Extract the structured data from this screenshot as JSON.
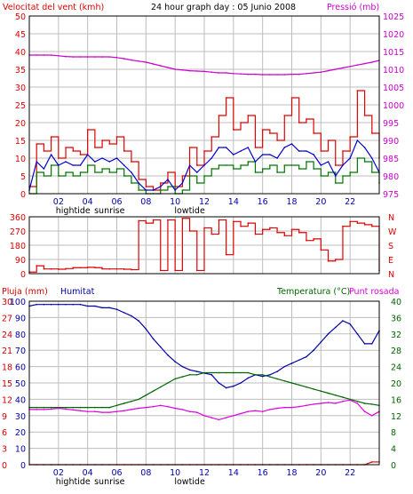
{
  "title": "24 hour graph day : 05 Junio 2008",
  "colors": {
    "wind": "#e00000",
    "wind_avg": "#0000cc",
    "wind_min": "#007700",
    "pressure": "#cc00cc",
    "humidity": "#0000aa",
    "temperature": "#006600",
    "dewpoint": "#dd00dd",
    "rain": "#d00000",
    "grid": "#bdbdbd",
    "frame": "#000000"
  },
  "x_ticks": [
    "02",
    "04",
    "06",
    "08",
    "10",
    "12",
    "14",
    "16",
    "18",
    "20",
    "22"
  ],
  "x_markers": {
    "hightide": {
      "label": "hightide",
      "at": "03"
    },
    "sunrise": {
      "label": "sunrise",
      "at": "05.5"
    },
    "lowtide": {
      "label": "lowtide",
      "at": "11"
    }
  },
  "chart_data": [
    {
      "type": "line",
      "panel": "wind_pressure",
      "left_label": "Velocitat del vent (kmh)",
      "right_label": "Pressió (mb)",
      "left_ticks": [
        "0",
        "5",
        "10",
        "15",
        "20",
        "25",
        "30",
        "35",
        "40",
        "45",
        "50"
      ],
      "right_ticks": [
        "975",
        "980",
        "985",
        "990",
        "995",
        "1000",
        "1005",
        "1010",
        "1015",
        "1020",
        "1025"
      ],
      "ylim_left": [
        0,
        50
      ],
      "ylim_right": [
        975,
        1025
      ],
      "x_hours": [
        0,
        0.5,
        1,
        1.5,
        2,
        2.5,
        3,
        3.5,
        4,
        4.5,
        5,
        5.5,
        6,
        6.5,
        7,
        7.5,
        8,
        8.5,
        9,
        9.5,
        10,
        10.5,
        11,
        11.5,
        12,
        12.5,
        13,
        13.5,
        14,
        14.5,
        15,
        15.5,
        16,
        16.5,
        17,
        17.5,
        18,
        18.5,
        19,
        19.5,
        20,
        20.5,
        21,
        21.5,
        22,
        22.5,
        23,
        23.5,
        24
      ],
      "series": [
        {
          "name": "gust",
          "values": [
            2,
            14,
            12,
            16,
            10,
            13,
            12,
            11,
            18,
            13,
            15,
            14,
            16,
            12,
            9,
            4,
            2,
            1,
            3,
            6,
            2,
            5,
            13,
            8,
            12,
            16,
            22,
            27,
            18,
            20,
            22,
            13,
            18,
            17,
            15,
            22,
            27,
            20,
            21,
            17,
            12,
            15,
            8,
            12,
            16,
            29,
            22,
            17,
            10
          ]
        },
        {
          "name": "average",
          "values": [
            1,
            9,
            7,
            11,
            8,
            9,
            8,
            8,
            11,
            9,
            10,
            9,
            10,
            8,
            6,
            3,
            1,
            1,
            2,
            4,
            1,
            3,
            8,
            6,
            8,
            10,
            13,
            13,
            11,
            12,
            13,
            9,
            11,
            11,
            10,
            13,
            14,
            12,
            12,
            11,
            8,
            9,
            5,
            8,
            10,
            15,
            13,
            10,
            6
          ]
        },
        {
          "name": "minimum",
          "values": [
            0,
            6,
            5,
            8,
            5,
            6,
            5,
            6,
            8,
            6,
            7,
            6,
            7,
            5,
            3,
            1,
            0,
            0,
            1,
            2,
            0,
            1,
            5,
            3,
            5,
            7,
            8,
            8,
            7,
            8,
            9,
            6,
            7,
            8,
            6,
            8,
            8,
            7,
            9,
            7,
            5,
            6,
            3,
            5,
            6,
            10,
            9,
            6,
            3
          ]
        },
        {
          "name": "pressure",
          "axis": "right",
          "values": [
            1014,
            1014,
            1014,
            1014,
            1013.8,
            1013.6,
            1013.5,
            1013.5,
            1013.5,
            1013.5,
            1013.5,
            1013.5,
            1013.3,
            1013,
            1012.6,
            1012.3,
            1012,
            1011.5,
            1011,
            1010.5,
            1010,
            1009.8,
            1009.6,
            1009.5,
            1009.4,
            1009.2,
            1009,
            1009,
            1008.8,
            1008.7,
            1008.6,
            1008.6,
            1008.5,
            1008.5,
            1008.5,
            1008.5,
            1008.6,
            1008.6,
            1008.8,
            1009,
            1009.2,
            1009.6,
            1010,
            1010.4,
            1010.8,
            1011.2,
            1011.6,
            1012,
            1012.5
          ]
        }
      ]
    },
    {
      "type": "line",
      "panel": "wind_direction",
      "left_ticks": [
        "0",
        "90",
        "180",
        "270",
        "360"
      ],
      "right_ticks": [
        "N",
        "E",
        "S",
        "W",
        "N"
      ],
      "ylim": [
        0,
        360
      ],
      "x_hours": [
        0,
        0.5,
        1,
        1.5,
        2,
        2.5,
        3,
        3.5,
        4,
        4.5,
        5,
        5.5,
        6,
        6.5,
        7,
        7.5,
        8,
        8.5,
        9,
        9.5,
        10,
        10.5,
        11,
        11.5,
        12,
        12.5,
        13,
        13.5,
        14,
        14.5,
        15,
        15.5,
        16,
        16.5,
        17,
        17.5,
        18,
        18.5,
        19,
        19.5,
        20,
        20.5,
        21,
        21.5,
        22,
        22.5,
        23,
        23.5,
        24
      ],
      "series": [
        {
          "name": "direction",
          "values": [
            10,
            50,
            30,
            30,
            28,
            32,
            38,
            38,
            40,
            38,
            30,
            30,
            30,
            28,
            25,
            335,
            320,
            340,
            20,
            340,
            20,
            350,
            270,
            20,
            290,
            250,
            340,
            120,
            330,
            300,
            320,
            250,
            280,
            290,
            260,
            240,
            280,
            260,
            210,
            220,
            150,
            80,
            90,
            300,
            330,
            320,
            310,
            300,
            20
          ]
        }
      ]
    },
    {
      "type": "line",
      "panel": "humidity_temperature",
      "left_label_rain": "Pluja (mm)",
      "left_label_hum": "Humitat",
      "right_label_temp": "Temperatura (°C)",
      "right_label_dew": "Punt rosada",
      "left_ticks_rain": [
        "0",
        "3",
        "6",
        "9",
        "12",
        "15",
        "18",
        "21",
        "24",
        "27",
        "30"
      ],
      "left_ticks_hum": [
        "0",
        "10",
        "20",
        "30",
        "40",
        "50",
        "60",
        "70",
        "80",
        "90",
        "100"
      ],
      "right_ticks": [
        "0",
        "4",
        "8",
        "12",
        "16",
        "20",
        "24",
        "28",
        "32",
        "36",
        "40"
      ],
      "ylim_left": [
        0,
        100
      ],
      "ylim_right": [
        0,
        40
      ],
      "x_hours": [
        0,
        0.5,
        1,
        1.5,
        2,
        2.5,
        3,
        3.5,
        4,
        4.5,
        5,
        5.5,
        6,
        6.5,
        7,
        7.5,
        8,
        8.5,
        9,
        9.5,
        10,
        10.5,
        11,
        11.5,
        12,
        12.5,
        13,
        13.5,
        14,
        14.5,
        15,
        15.5,
        16,
        16.5,
        17,
        17.5,
        18,
        18.5,
        19,
        19.5,
        20,
        20.5,
        21,
        21.5,
        22,
        22.5,
        23,
        23.5,
        24
      ],
      "series": [
        {
          "name": "humidity",
          "values": [
            97,
            98,
            98,
            98,
            98,
            98,
            98,
            98,
            97,
            97,
            96,
            96,
            95,
            93,
            91,
            88,
            83,
            77,
            72,
            67,
            63,
            60,
            58,
            57,
            56,
            55,
            50,
            47,
            48,
            50,
            53,
            55,
            54,
            55,
            57,
            60,
            62,
            64,
            66,
            70,
            75,
            80,
            84,
            88,
            86,
            80,
            74,
            74,
            82
          ]
        },
        {
          "name": "temperature",
          "axis": "right",
          "values": [
            14,
            14,
            14,
            14,
            14,
            14,
            14,
            14,
            14,
            14,
            14,
            14,
            14.5,
            15,
            15.5,
            16,
            17,
            18,
            19,
            20,
            21,
            21.5,
            22,
            22,
            22.5,
            22.5,
            22.5,
            22.5,
            22.5,
            22.5,
            22.5,
            22,
            22,
            21.5,
            21,
            20.5,
            20,
            19.5,
            19,
            18.5,
            18,
            17.5,
            17,
            16.5,
            16,
            15.5,
            15,
            14.8,
            14.5
          ]
        },
        {
          "name": "dewpoint",
          "axis": "right",
          "values": [
            13.5,
            13.5,
            13.5,
            13.6,
            13.8,
            13.6,
            13.4,
            13.2,
            13,
            13,
            12.8,
            12.8,
            13,
            13.2,
            13.5,
            13.8,
            14,
            14.2,
            14.5,
            14.2,
            13.8,
            13.5,
            13,
            12.8,
            12,
            11.5,
            11,
            11.5,
            12,
            12.5,
            13,
            13.2,
            13,
            13.5,
            13.8,
            14,
            14,
            14.2,
            14.5,
            14.8,
            15,
            15.2,
            15,
            15.5,
            15.8,
            15,
            13,
            12,
            13
          ]
        },
        {
          "name": "rain",
          "values": [
            0,
            0,
            0,
            0,
            0,
            0,
            0,
            0,
            0,
            0,
            0,
            0,
            0,
            0,
            0,
            0,
            0,
            0,
            0,
            0,
            0,
            0,
            0,
            0,
            0,
            0,
            0,
            0,
            0,
            0,
            0,
            0,
            0,
            0,
            0,
            0,
            0,
            0,
            0,
            0,
            0,
            0,
            0,
            0,
            0,
            0,
            0,
            0.5,
            0.5
          ]
        }
      ]
    }
  ]
}
